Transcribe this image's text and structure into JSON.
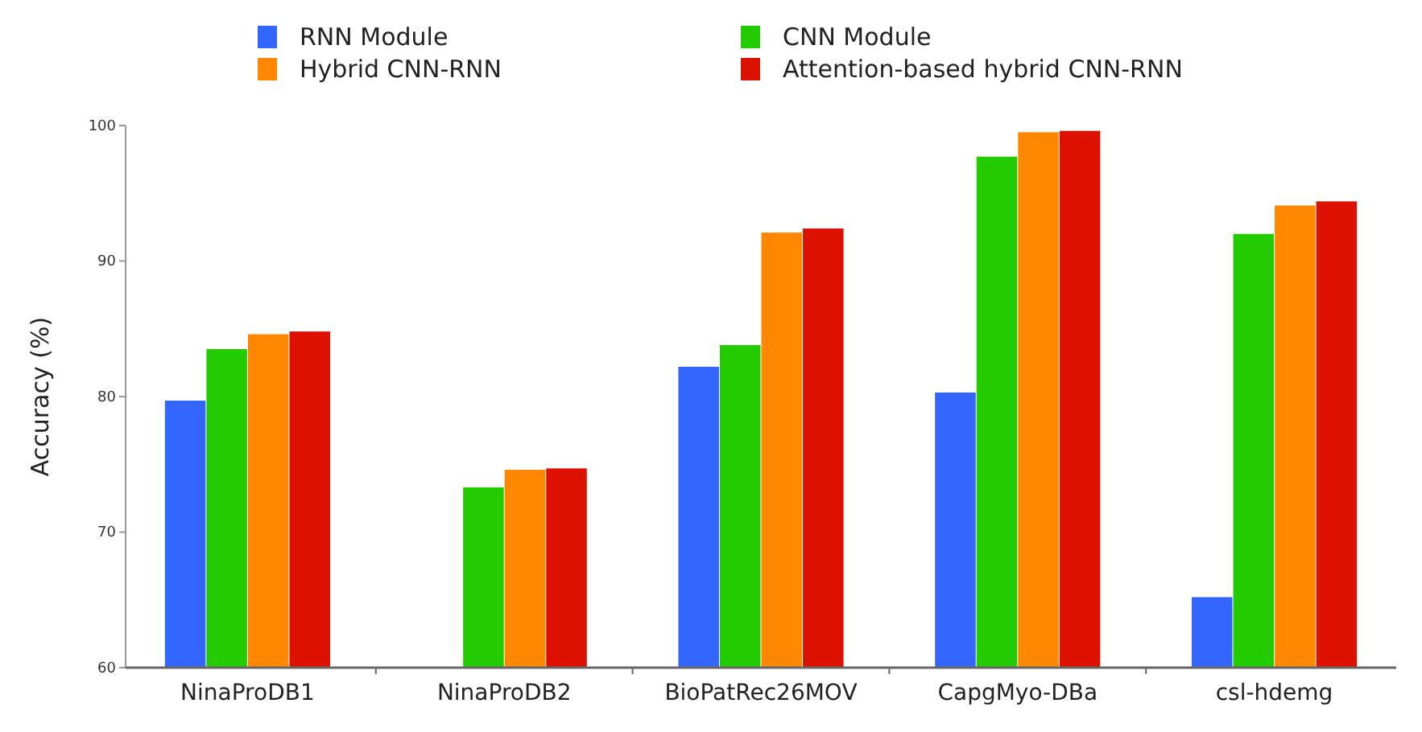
{
  "chart_data": {
    "type": "bar",
    "ylabel": "Accuracy (%)",
    "categories": [
      "NinaProDB1",
      "NinaProDB2",
      "BioPatRec26MOV",
      "CapgMyo-DBa",
      "csl-hdemg"
    ],
    "series": [
      {
        "name": "RNN Module",
        "color": "#3366ff",
        "values": [
          79.7,
          null,
          82.2,
          80.3,
          65.2
        ]
      },
      {
        "name": "CNN Module",
        "color": "#22cc00",
        "values": [
          83.5,
          73.3,
          83.8,
          97.7,
          92.0
        ]
      },
      {
        "name": "Hybrid CNN-RNN",
        "color": "#ff8800",
        "values": [
          84.6,
          74.6,
          92.1,
          99.5,
          94.1
        ]
      },
      {
        "name": "Attention-based hybrid CNN-RNN",
        "color": "#dd1100",
        "values": [
          84.8,
          74.7,
          92.4,
          99.6,
          94.4
        ]
      }
    ],
    "ylim": [
      60,
      100
    ],
    "yticks": [
      60,
      70,
      80,
      90,
      100
    ],
    "grid": false,
    "legend": "top"
  }
}
